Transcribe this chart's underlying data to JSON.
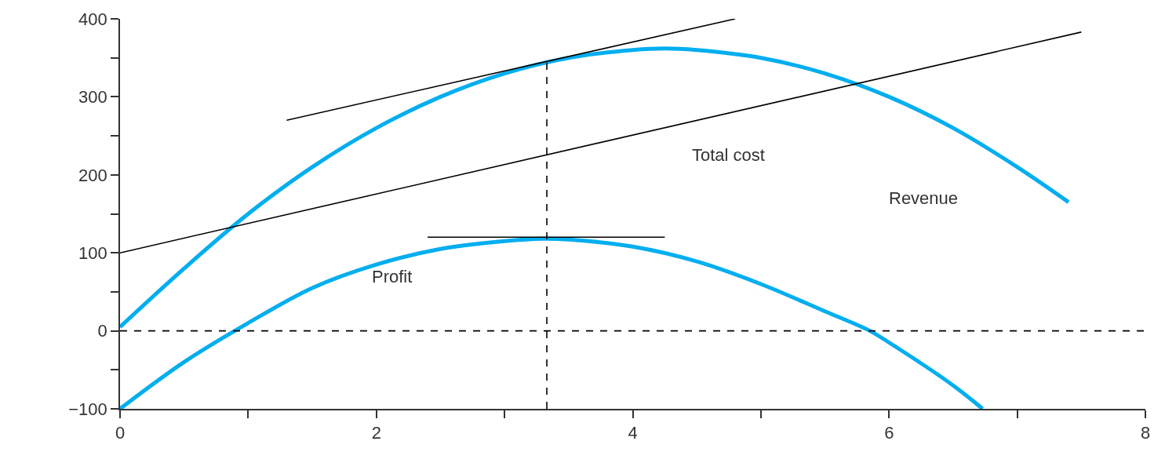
{
  "chart_data": {
    "type": "line",
    "series": [
      {
        "color": "#00aeef",
        "x": [
          0,
          0.5,
          1,
          1.5,
          2,
          2.5,
          3,
          3.5,
          4,
          4.25,
          4.5,
          5,
          5.5,
          6,
          6.5,
          7,
          7.4
        ],
        "values": [
          5,
          80,
          150,
          210,
          260,
          300,
          330,
          350,
          360,
          362,
          360,
          350,
          330,
          300,
          260,
          210,
          165
        ]
      },
      {
        "color": "#00aeef",
        "x": [
          0,
          0.5,
          1,
          1.5,
          2,
          2.5,
          3,
          3.3,
          3.5,
          4,
          4.5,
          5,
          5.5,
          5.85,
          6,
          6.5,
          6.73
        ],
        "values": [
          -100,
          -40,
          10,
          55,
          85,
          105,
          115,
          118,
          117,
          108,
          89,
          60,
          25,
          0,
          -15,
          -70,
          -100
        ]
      },
      {
        "color": "#000000",
        "x": [
          0,
          7.5
        ],
        "values": [
          100,
          383
        ]
      },
      {
        "color": "#000000",
        "x": [
          1.3,
          4.8
        ],
        "values": [
          270,
          400
        ]
      },
      {
        "color": "#000000",
        "x": [
          2.4,
          4.25
        ],
        "values": [
          120,
          120
        ]
      },
      {
        "color": "#000000",
        "x": [
          3.33,
          3.33
        ],
        "values": [
          -100,
          345
        ],
        "line_style": "dashed"
      }
    ],
    "ref_lines": [
      {
        "axis": "y",
        "value": 0,
        "color": "#000000",
        "line_style": "dashed"
      }
    ],
    "annotations": [
      "Total cost",
      "Revenue",
      "Profit"
    ],
    "xlim": [
      0,
      8
    ],
    "xticks": [
      0,
      {
        "value": 1,
        "label": null
      },
      2,
      {
        "value": 3,
        "label": null
      },
      4,
      {
        "value": 5,
        "label": null
      },
      6,
      {
        "value": 7,
        "label": null
      },
      8
    ],
    "ylim": [
      -100,
      400
    ],
    "yticks": [
      {
        "value": -100,
        "label": "−100"
      },
      {
        "value": -50,
        "label": null
      },
      0,
      {
        "value": 50,
        "label": null
      },
      100,
      {
        "value": 150,
        "label": null
      },
      200,
      {
        "value": 250,
        "label": null
      },
      300,
      {
        "value": 350,
        "label": null
      },
      400
    ],
    "marker": "none",
    "line_style": "solid"
  }
}
